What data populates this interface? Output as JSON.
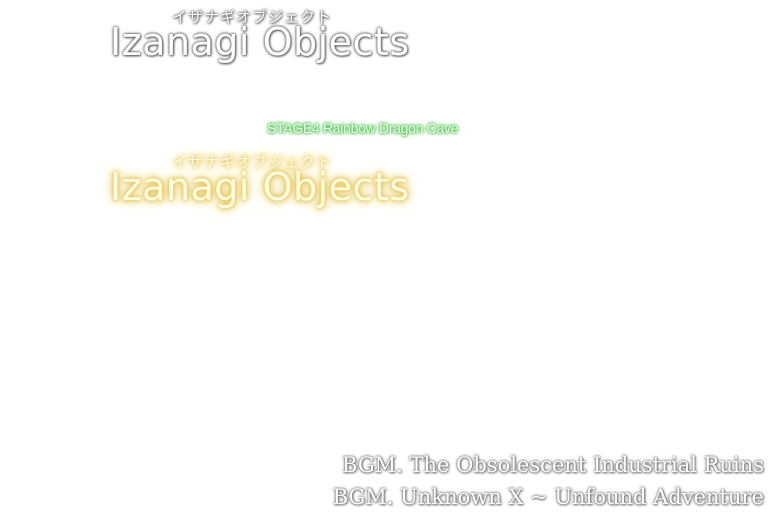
{
  "title_card": {
    "furigana": "イザナギオブジェクト",
    "title": "Izanagi Objects"
  },
  "stage_intro": {
    "stage_name": "STAGE4 Rainbow Dragon Cave",
    "furigana": "イザナギオブジェクト",
    "title": "Izanagi Objects"
  },
  "bgm": [
    "BGM. The Obsolescent Industrial Ruins",
    "BGM. Unknown X ~ Unfound Adventure"
  ],
  "colors": {
    "background": "#ffffff",
    "title_outline": "#555555",
    "stage_glow": "#4cc04c",
    "title_glow": "#e0b840"
  }
}
